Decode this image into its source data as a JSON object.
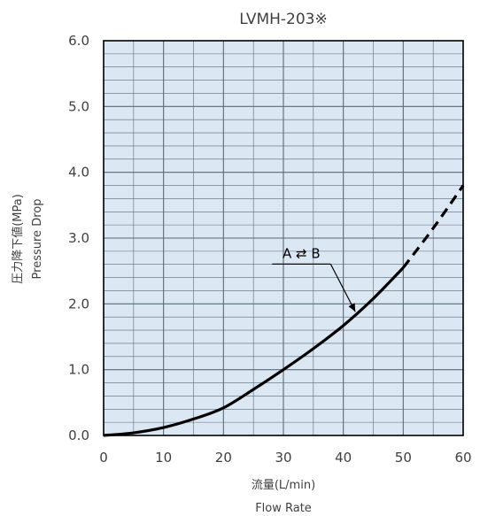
{
  "chart_data": {
    "type": "line",
    "title": "LVMH-203※",
    "xlabel": "流量(L/min)",
    "xlabel_sub": "Flow Rate",
    "ylabel": "圧力降下値(MPa)",
    "ylabel_sub": "Pressure Drop",
    "xlim": [
      0,
      60
    ],
    "ylim": [
      0,
      6
    ],
    "x_ticks": [
      "0",
      "10",
      "20",
      "30",
      "40",
      "50",
      "60"
    ],
    "y_ticks": [
      "0.0",
      "1.0",
      "2.0",
      "3.0",
      "4.0",
      "5.0",
      "6.0"
    ],
    "x_minor_step": 5,
    "y_minor_step": 0.2,
    "grid": true,
    "background_color": "#dbe7f3",
    "grid_color": "#5a6a7a",
    "line_color": "#000000",
    "series": [
      {
        "name": "A ⇄ B",
        "style": "solid",
        "x": [
          0,
          5,
          10,
          15,
          20,
          25,
          30,
          35,
          40,
          45,
          50
        ],
        "y": [
          0,
          0.04,
          0.12,
          0.25,
          0.42,
          0.7,
          1.0,
          1.32,
          1.67,
          2.08,
          2.55
        ]
      },
      {
        "name": "",
        "style": "dashed",
        "x": [
          50,
          55,
          60
        ],
        "y": [
          2.55,
          3.15,
          3.8
        ]
      }
    ],
    "annotations": [
      {
        "text": "A ⇄ B",
        "label_at": [
          33,
          2.7
        ],
        "arrow_to": [
          42,
          1.88
        ]
      }
    ]
  }
}
